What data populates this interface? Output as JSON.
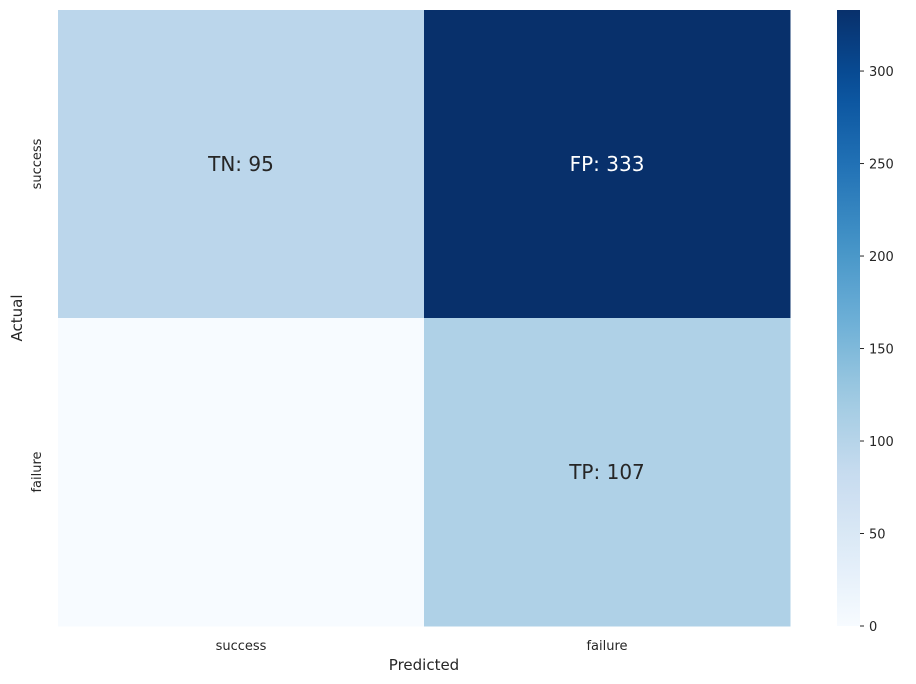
{
  "chart_data": {
    "type": "heatmap",
    "title": "",
    "xlabel": "Predicted",
    "ylabel": "Actual",
    "x_categories": [
      "success",
      "failure"
    ],
    "y_categories": [
      "success",
      "failure"
    ],
    "values": [
      [
        95,
        333
      ],
      [
        0,
        107
      ]
    ],
    "annotations": [
      [
        "TN: 95",
        "FP: 333"
      ],
      [
        "",
        "TP: 107"
      ]
    ],
    "colorbar": {
      "min": 0,
      "max": 333,
      "ticks": [
        0,
        50,
        100,
        150,
        200,
        250,
        300
      ],
      "colormap": "Blues"
    },
    "colors": {
      "low": "#f7fbff",
      "high": "#08306b",
      "annotation_dark": "#262626",
      "annotation_light": "#ffffff",
      "axis_text": "#262626"
    }
  }
}
